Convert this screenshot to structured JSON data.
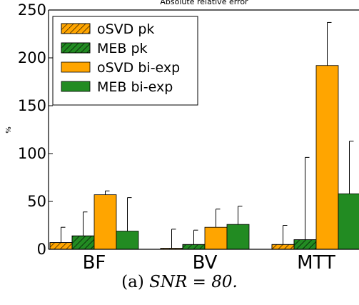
{
  "chart_data": {
    "type": "bar",
    "title": "Absolute relative error",
    "ylabel": "%",
    "xlabel": "",
    "categories": [
      "BF",
      "BV",
      "MTT"
    ],
    "ylim": [
      0,
      250
    ],
    "yticks": [
      0,
      50,
      100,
      150,
      200,
      250
    ],
    "grid": false,
    "legend_position": "top-left",
    "series": [
      {
        "name": "oSVD pk",
        "values": [
          7,
          1,
          5
        ],
        "errors": [
          16,
          20,
          20
        ],
        "color": "#FFA500",
        "hatched": true
      },
      {
        "name": "MEB pk",
        "values": [
          14,
          5,
          10
        ],
        "errors": [
          25,
          15,
          86
        ],
        "color": "#228B22",
        "hatched": true
      },
      {
        "name": "oSVD bi-exp",
        "values": [
          57,
          23,
          192
        ],
        "errors": [
          4,
          19,
          45
        ],
        "color": "#FFA500",
        "hatched": false
      },
      {
        "name": "MEB bi-exp",
        "values": [
          19,
          26,
          58
        ],
        "errors": [
          35,
          19,
          55
        ],
        "color": "#228B22",
        "hatched": false
      }
    ]
  },
  "caption": {
    "prefix": "(a) ",
    "formula": "SNR = 80."
  }
}
